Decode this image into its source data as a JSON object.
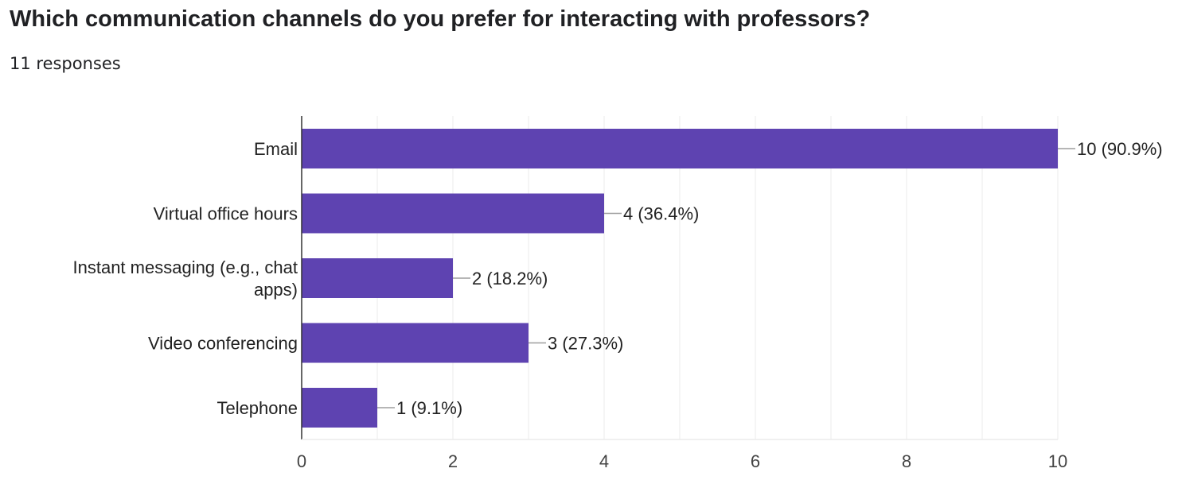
{
  "question": {
    "title": "Which communication channels do you prefer for interacting with professors?",
    "responses": "11 responses"
  },
  "colors": {
    "bar": "#5e43b1",
    "grid": "#ebebeb",
    "axis": "#333333",
    "leader": "#9e9e9e"
  },
  "chart_data": {
    "type": "bar",
    "orientation": "horizontal",
    "title": "Which communication channels do you prefer for interacting with professors?",
    "categories": [
      "Email",
      "Virtual office hours",
      "Instant messaging (e.g., chat apps)",
      "Video conferencing",
      "Telephone"
    ],
    "category_lines": [
      [
        "Email"
      ],
      [
        "Virtual office hours"
      ],
      [
        "Instant messaging (e.g., chat",
        "apps)"
      ],
      [
        "Video conferencing"
      ],
      [
        "Telephone"
      ]
    ],
    "values": [
      10,
      4,
      2,
      3,
      1
    ],
    "value_labels": [
      "10 (90.9%)",
      "4 (36.4%)",
      "2 (18.2%)",
      "3 (27.3%)",
      "1 (9.1%)"
    ],
    "xlim": [
      0,
      10
    ],
    "x_ticks": [
      0,
      2,
      4,
      6,
      8,
      10
    ],
    "grid": true,
    "xlabel": "",
    "ylabel": ""
  }
}
